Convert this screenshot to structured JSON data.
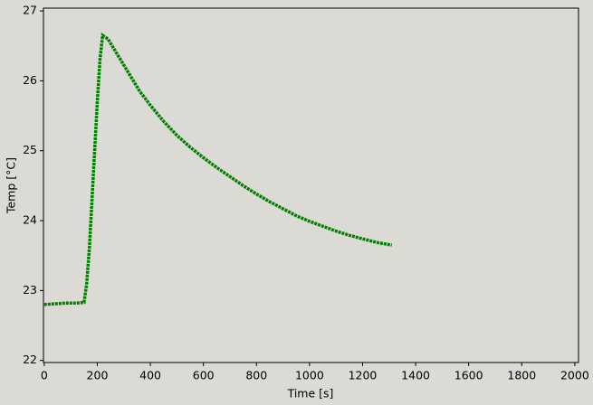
{
  "chart_data": {
    "type": "line",
    "xlabel": "Time [s]",
    "ylabel": "Temp [°C]",
    "x": [
      0,
      40,
      80,
      120,
      150,
      160,
      170,
      180,
      190,
      200,
      210,
      220,
      240,
      280,
      320,
      360,
      400,
      450,
      500,
      550,
      600,
      650,
      700,
      750,
      800,
      850,
      900,
      950,
      1000,
      1050,
      1100,
      1150,
      1200,
      1250,
      1310
    ],
    "series": [
      {
        "color": "#008000",
        "values": [
          22.8,
          22.81,
          22.82,
          22.82,
          22.83,
          23.1,
          23.6,
          24.3,
          25.0,
          25.7,
          26.3,
          26.65,
          26.6,
          26.35,
          26.1,
          25.85,
          25.65,
          25.42,
          25.22,
          25.05,
          24.9,
          24.76,
          24.63,
          24.5,
          24.38,
          24.27,
          24.17,
          24.07,
          23.99,
          23.92,
          23.85,
          23.79,
          23.74,
          23.69,
          23.65
        ]
      }
    ],
    "xlim": [
      -3,
      2014
    ],
    "ylim": [
      21.97,
      27.04
    ],
    "xticks": [
      0,
      200,
      400,
      600,
      800,
      1000,
      1200,
      1400,
      1600,
      1800,
      2000
    ],
    "yticks": [
      22,
      23,
      24,
      25,
      26,
      27
    ]
  }
}
